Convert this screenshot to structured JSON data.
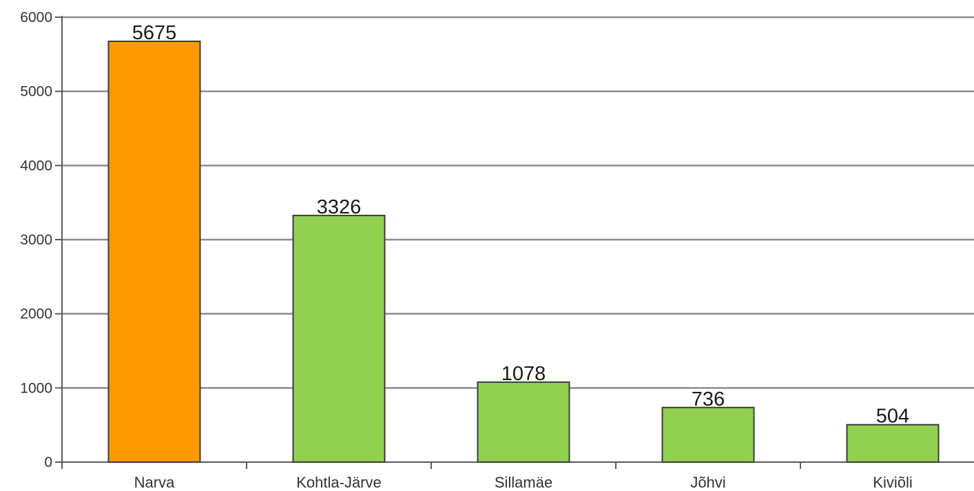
{
  "chart_data": {
    "type": "bar",
    "categories": [
      "Narva",
      "Kohtla-Järve",
      "Sillamäe",
      "Jõhvi",
      "Kiviõli"
    ],
    "values": [
      5675,
      3326,
      1078,
      736,
      504
    ],
    "data_labels": [
      "5675",
      "3326",
      "1078",
      "736",
      "504"
    ],
    "title": "",
    "xlabel": "",
    "ylabel": "",
    "ylim": [
      0,
      6000
    ],
    "yticks": [
      0,
      1000,
      2000,
      3000,
      4000,
      5000,
      6000
    ],
    "ytick_labels": [
      "0",
      "1000",
      "2000",
      "3000",
      "4000",
      "5000",
      "6000"
    ],
    "grid": true,
    "legend": "none",
    "colors": {
      "highlight": "#FF9900",
      "default": "#92D050",
      "bar_outline": "#3B3B3B",
      "grid": "#8C8C8C"
    },
    "highlight_index": 0
  }
}
